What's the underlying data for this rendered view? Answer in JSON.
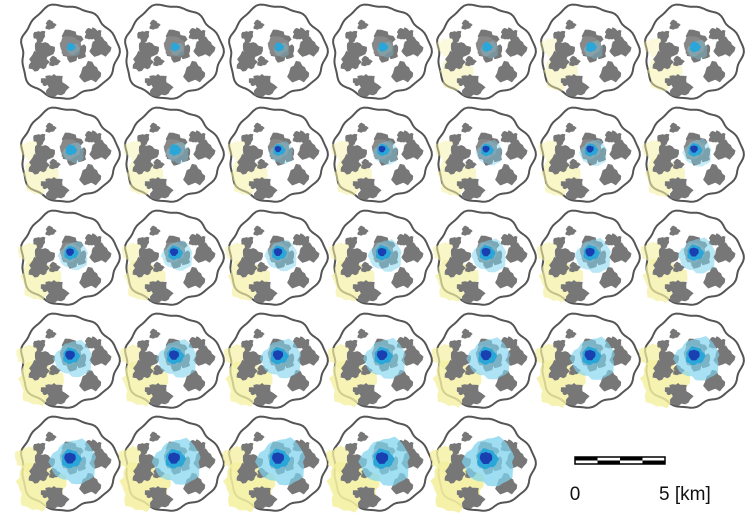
{
  "scale_bar": {
    "labels": [
      "0",
      "5 [km]"
    ]
  }
}
